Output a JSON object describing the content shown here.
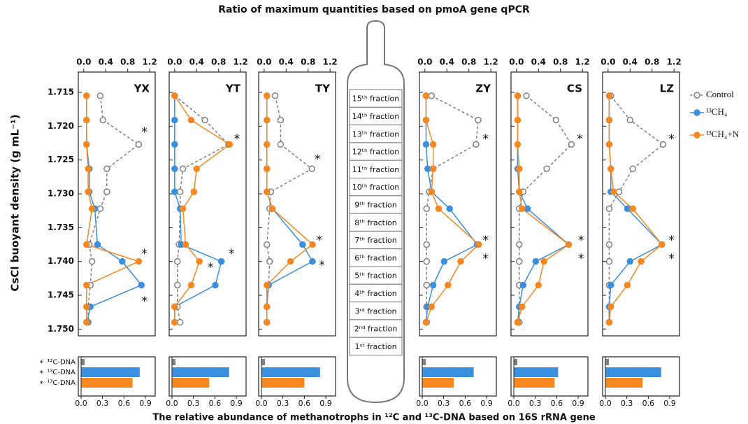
{
  "title": "Ratio of maximum quantities based on pmoA gene qPCR",
  "y_label": "CsCl buoyant density (g mL⁻¹)",
  "bottom_title": "The relative abundance of methanotrophs in ¹²C and ¹³C-DNA based on 16S rRNA gene",
  "fractions": [
    "15ᵗʰ fraction",
    "14ᵗʰ fraction",
    "13ᵗʰ fraction",
    "12ᵗʰ fraction",
    "11ᵗʰ fraction",
    "10ᵗʰ fraction",
    "9ᵗʰ fraction",
    "8ᵗʰ fraction",
    "7ᵗʰ fraction",
    "6ᵗʰ fraction",
    "5ᵗʰ fraction",
    "4ᵗʰ fraction",
    "3ʳᵈ fraction",
    "2ⁿᵈ fraction",
    "1ˢᵗ fraction"
  ],
  "chart_data": [
    {
      "type": "line",
      "title": "YX",
      "legend": "right",
      "xlim": [
        -0.1,
        1.3
      ],
      "xticks": [
        {
          "value": 0,
          "label": "0.0"
        },
        0.4,
        0.8,
        1.2
      ],
      "ylim": [
        1.712,
        1.751
      ],
      "yticks": [
        1.715,
        {
          "value": 1.72,
          "label": "1.720"
        },
        1.725,
        {
          "value": 1.73,
          "label": "1.730"
        },
        1.735,
        {
          "value": 1.74,
          "label": "1.740"
        },
        1.745,
        {
          "value": 1.75,
          "label": "1.750"
        }
      ],
      "x": [
        1.7155,
        1.7191,
        1.7227,
        1.7263,
        1.7297,
        1.7322,
        1.7375,
        1.74,
        1.7435,
        1.7467,
        1.749
      ],
      "series": [
        {
          "name": "Control",
          "color": "#808080",
          "line_style": "dashed",
          "marker": "open",
          "values": [
            0.3,
            0.35,
            1.0,
            0.42,
            0.42,
            0.3,
            0.1,
            0.15,
            0.12,
            0.08,
            0.08
          ]
        },
        {
          "name": "¹³CH₄",
          "color": "#3a8fde",
          "line_style": "solid",
          "marker": "filled",
          "values": [
            0.05,
            0.05,
            0.05,
            0.1,
            0.1,
            0.2,
            0.25,
            0.7,
            1.05,
            0.12,
            0.06
          ]
        },
        {
          "name": "¹³CH₄+N",
          "color": "#f7871f",
          "line_style": "solid",
          "marker": "filled",
          "values": [
            0.05,
            0.05,
            0.05,
            0.08,
            0.08,
            0.15,
            0.05,
            1.0,
            0.05,
            0.05,
            0.05
          ]
        }
      ],
      "annotations": [
        {
          "text": "*",
          "color": "#808080",
          "x": 1.05,
          "y": 1.7205
        },
        {
          "text": "*",
          "color": "#f7871f",
          "x": 1.05,
          "y": 1.7385
        },
        {
          "text": "*",
          "color": "#3a8fde",
          "x": 1.05,
          "y": 1.7455
        }
      ],
      "bars": {
        "categories": [
          "¹²C-DNA",
          "¹³C-DNA",
          "¹³C-DNA"
        ],
        "category_marks": [
          "*",
          "*",
          "*"
        ],
        "colors": [
          "#808080",
          "#3a8fde",
          "#f7871f"
        ],
        "values": [
          0.05,
          0.82,
          0.72
        ],
        "xlim": [
          0,
          0.9
        ],
        "xticks": [
          {
            "value": 0,
            "label": "0.0"
          },
          0.3,
          0.6,
          0.9
        ]
      }
    },
    {
      "type": "line",
      "title": "YT",
      "xlim": [
        -0.1,
        1.3
      ],
      "xticks": [
        {
          "value": 0,
          "label": "0.0"
        },
        0.4,
        0.8,
        1.2
      ],
      "ylim": [
        1.712,
        1.751
      ],
      "x": [
        1.7155,
        1.7191,
        1.7227,
        1.7263,
        1.7297,
        1.7322,
        1.7375,
        1.74,
        1.7435,
        1.7467,
        1.749
      ],
      "series": [
        {
          "name": "Control",
          "color": "#808080",
          "line_style": "dashed",
          "marker": "open",
          "values": [
            0.0,
            0.55,
            0.98,
            0.15,
            0.1,
            0.1,
            0.08,
            0.05,
            0.05,
            0.05,
            0.1
          ]
        },
        {
          "name": "¹³CH₄",
          "color": "#3a8fde",
          "line_style": "solid",
          "marker": "filled",
          "values": [
            0.0,
            0.0,
            0.0,
            0.0,
            0.0,
            0.1,
            0.12,
            0.85,
            0.74,
            0.0,
            0.0
          ]
        },
        {
          "name": "¹³CH₄+N",
          "color": "#f7871f",
          "line_style": "solid",
          "marker": "filled",
          "values": [
            0.0,
            0.3,
            1.0,
            0.4,
            0.35,
            0.15,
            0.2,
            0.45,
            0.3,
            0.0,
            0.0
          ]
        }
      ],
      "annotations": [
        {
          "text": "*",
          "color": "#808080",
          "x": 1.08,
          "y": 1.7215
        },
        {
          "text": "*",
          "color": "#3a8fde",
          "x": 0.98,
          "y": 1.7385
        },
        {
          "text": "*",
          "color": "#f7871f",
          "x": 0.6,
          "y": 1.7405
        }
      ],
      "bars": {
        "colors": [
          "#808080",
          "#3a8fde",
          "#f7871f"
        ],
        "values": [
          0.05,
          0.8,
          0.52
        ],
        "xlim": [
          0,
          0.9
        ],
        "xticks": [
          {
            "value": 0,
            "label": "0.0"
          },
          0.3,
          0.6,
          0.9
        ]
      }
    },
    {
      "type": "line",
      "title": "TY",
      "xlim": [
        -0.1,
        1.3
      ],
      "xticks": [
        {
          "value": 0,
          "label": "0.0"
        },
        0.4,
        0.8,
        1.2
      ],
      "ylim": [
        1.712,
        1.751
      ],
      "x": [
        1.7155,
        1.7191,
        1.7227,
        1.7263,
        1.7297,
        1.7322,
        1.7375,
        1.74,
        1.7435,
        1.7467,
        1.749
      ],
      "series": [
        {
          "name": "Control",
          "color": "#808080",
          "line_style": "dashed",
          "marker": "open",
          "values": [
            0.2,
            0.3,
            0.3,
            0.87,
            0.12,
            0.1,
            0.05,
            0.1,
            0.08,
            0.05,
            0.05
          ]
        },
        {
          "name": "¹³CH₄",
          "color": "#3a8fde",
          "line_style": "solid",
          "marker": "filled",
          "values": [
            0.05,
            0.05,
            0.05,
            0.05,
            0.05,
            0.15,
            0.7,
            0.88,
            0.08,
            0.05,
            0.05
          ]
        },
        {
          "name": "¹³CH₄+N",
          "color": "#f7871f",
          "line_style": "solid",
          "marker": "filled",
          "values": [
            0.05,
            0.05,
            0.05,
            0.05,
            0.05,
            0.15,
            0.88,
            0.48,
            0.05,
            0.05,
            0.05
          ]
        }
      ],
      "annotations": [
        {
          "text": "*",
          "color": "#808080",
          "x": 0.92,
          "y": 1.7245
        },
        {
          "text": "*",
          "color": "#f7871f",
          "x": 0.95,
          "y": 1.7365
        },
        {
          "text": "*",
          "color": "#3a8fde",
          "x": 1.0,
          "y": 1.7402
        }
      ],
      "bars": {
        "colors": [
          "#808080",
          "#3a8fde",
          "#f7871f"
        ],
        "values": [
          0.05,
          0.82,
          0.6
        ],
        "xlim": [
          0,
          0.9
        ],
        "xticks": [
          {
            "value": 0,
            "label": "0.0"
          },
          0.3,
          0.6,
          0.9
        ]
      }
    },
    {
      "type": "line",
      "title": "ZY",
      "xlim": [
        -0.1,
        1.3
      ],
      "xticks": [
        {
          "value": 0,
          "label": "0.0"
        },
        0.4,
        0.8,
        1.2
      ],
      "ylim": [
        1.712,
        1.751
      ],
      "x": [
        1.7155,
        1.7191,
        1.7227,
        1.7263,
        1.7297,
        1.7322,
        1.7375,
        1.74,
        1.7435,
        1.7467,
        1.749
      ],
      "series": [
        {
          "name": "Control",
          "color": "#808080",
          "line_style": "dashed",
          "marker": "open",
          "values": [
            0.12,
            0.97,
            0.93,
            0.15,
            0.08,
            0.03,
            0.03,
            0.03,
            0.03,
            0.03,
            0.03
          ]
        },
        {
          "name": "¹³CH₄",
          "color": "#3a8fde",
          "line_style": "solid",
          "marker": "filled",
          "values": [
            0.02,
            0.02,
            0.02,
            0.05,
            0.12,
            0.45,
            0.95,
            0.35,
            0.15,
            0.05,
            0.02
          ]
        },
        {
          "name": "¹³CH₄+N",
          "color": "#f7871f",
          "line_style": "solid",
          "marker": "filled",
          "values": [
            0.02,
            0.02,
            0.15,
            0.15,
            0.12,
            0.25,
            0.98,
            0.65,
            0.42,
            0.12,
            0.02
          ]
        }
      ],
      "annotations": [
        {
          "text": "*",
          "color": "#808080",
          "x": 1.05,
          "y": 1.7215
        },
        {
          "text": "*",
          "color": "#3a8fde",
          "x": 1.05,
          "y": 1.7365
        },
        {
          "text": "*",
          "color": "#f7871f",
          "x": 1.05,
          "y": 1.7392
        }
      ],
      "bars": {
        "colors": [
          "#808080",
          "#3a8fde",
          "#f7871f"
        ],
        "values": [
          0.05,
          0.72,
          0.44
        ],
        "xlim": [
          0,
          0.9
        ],
        "xticks": [
          {
            "value": 0,
            "label": "0.0"
          },
          0.3,
          0.6,
          0.9
        ]
      }
    },
    {
      "type": "line",
      "title": "CS",
      "xlim": [
        -0.1,
        1.3
      ],
      "xticks": [
        {
          "value": 0,
          "label": "0.0"
        },
        0.4,
        0.8,
        1.2
      ],
      "ylim": [
        1.712,
        1.751
      ],
      "x": [
        1.7155,
        1.7191,
        1.7227,
        1.7263,
        1.7297,
        1.7322,
        1.7375,
        1.74,
        1.7435,
        1.7467,
        1.749
      ],
      "series": [
        {
          "name": "Control",
          "color": "#808080",
          "line_style": "dashed",
          "marker": "open",
          "values": [
            0.18,
            0.72,
            1.0,
            0.55,
            0.12,
            0.05,
            0.05,
            0.05,
            0.05,
            0.05,
            0.05
          ]
        },
        {
          "name": "¹³CH₄",
          "color": "#3a8fde",
          "line_style": "solid",
          "marker": "filled",
          "values": [
            0.02,
            0.02,
            0.02,
            0.02,
            0.05,
            0.2,
            0.95,
            0.35,
            0.12,
            0.05,
            0.02
          ]
        },
        {
          "name": "¹³CH₄+N",
          "color": "#f7871f",
          "line_style": "solid",
          "marker": "filled",
          "values": [
            0.02,
            0.02,
            0.02,
            0.05,
            0.05,
            0.1,
            0.95,
            0.5,
            0.4,
            0.1,
            0.02
          ]
        }
      ],
      "annotations": [
        {
          "text": "*",
          "color": "#808080",
          "x": 1.1,
          "y": 1.7215
        },
        {
          "text": "*",
          "color": "#3a8fde",
          "x": 1.12,
          "y": 1.7365
        },
        {
          "text": "*",
          "color": "#f7871f",
          "x": 1.12,
          "y": 1.7392
        }
      ],
      "bars": {
        "colors": [
          "#808080",
          "#3a8fde",
          "#f7871f"
        ],
        "values": [
          0.05,
          0.62,
          0.57
        ],
        "xlim": [
          0,
          0.9
        ],
        "xticks": [
          {
            "value": 0,
            "label": "0.0"
          },
          0.3,
          0.6,
          0.9
        ]
      }
    },
    {
      "type": "line",
      "title": "LZ",
      "xlim": [
        -0.1,
        1.3
      ],
      "xticks": [
        {
          "value": 0,
          "label": "0.0"
        },
        0.4,
        0.8,
        1.2
      ],
      "ylim": [
        1.712,
        1.751
      ],
      "x": [
        1.7155,
        1.7191,
        1.7227,
        1.7263,
        1.7297,
        1.7322,
        1.7375,
        1.74,
        1.7435,
        1.7467,
        1.749
      ],
      "series": [
        {
          "name": "Control",
          "color": "#808080",
          "line_style": "dashed",
          "marker": "open",
          "values": [
            0.05,
            0.4,
            1.0,
            0.45,
            0.2,
            0.02,
            0.02,
            0.02,
            0.02,
            0.02,
            0.02
          ]
        },
        {
          "name": "¹³CH₄",
          "color": "#3a8fde",
          "line_style": "solid",
          "marker": "filled",
          "values": [
            0.02,
            0.02,
            0.02,
            0.05,
            0.05,
            0.35,
            0.98,
            0.4,
            0.05,
            0.02,
            0.02
          ]
        },
        {
          "name": "¹³CH₄+N",
          "color": "#f7871f",
          "line_style": "solid",
          "marker": "filled",
          "values": [
            0.02,
            0.02,
            0.02,
            0.05,
            0.1,
            0.45,
            0.98,
            0.6,
            0.35,
            0.05,
            0.02
          ]
        }
      ],
      "annotations": [
        {
          "text": "*",
          "color": "#808080",
          "x": 1.1,
          "y": 1.7215
        },
        {
          "text": "*",
          "color": "#3a8fde",
          "x": 1.1,
          "y": 1.7365
        },
        {
          "text": "*",
          "color": "#f7871f",
          "x": 1.1,
          "y": 1.7392
        }
      ],
      "bars": {
        "colors": [
          "#808080",
          "#3a8fde",
          "#f7871f"
        ],
        "values": [
          0.05,
          0.78,
          0.52
        ],
        "xlim": [
          0,
          0.9
        ],
        "xticks": [
          {
            "value": 0,
            "label": "0.0"
          },
          0.3,
          0.6,
          0.9
        ]
      }
    }
  ]
}
